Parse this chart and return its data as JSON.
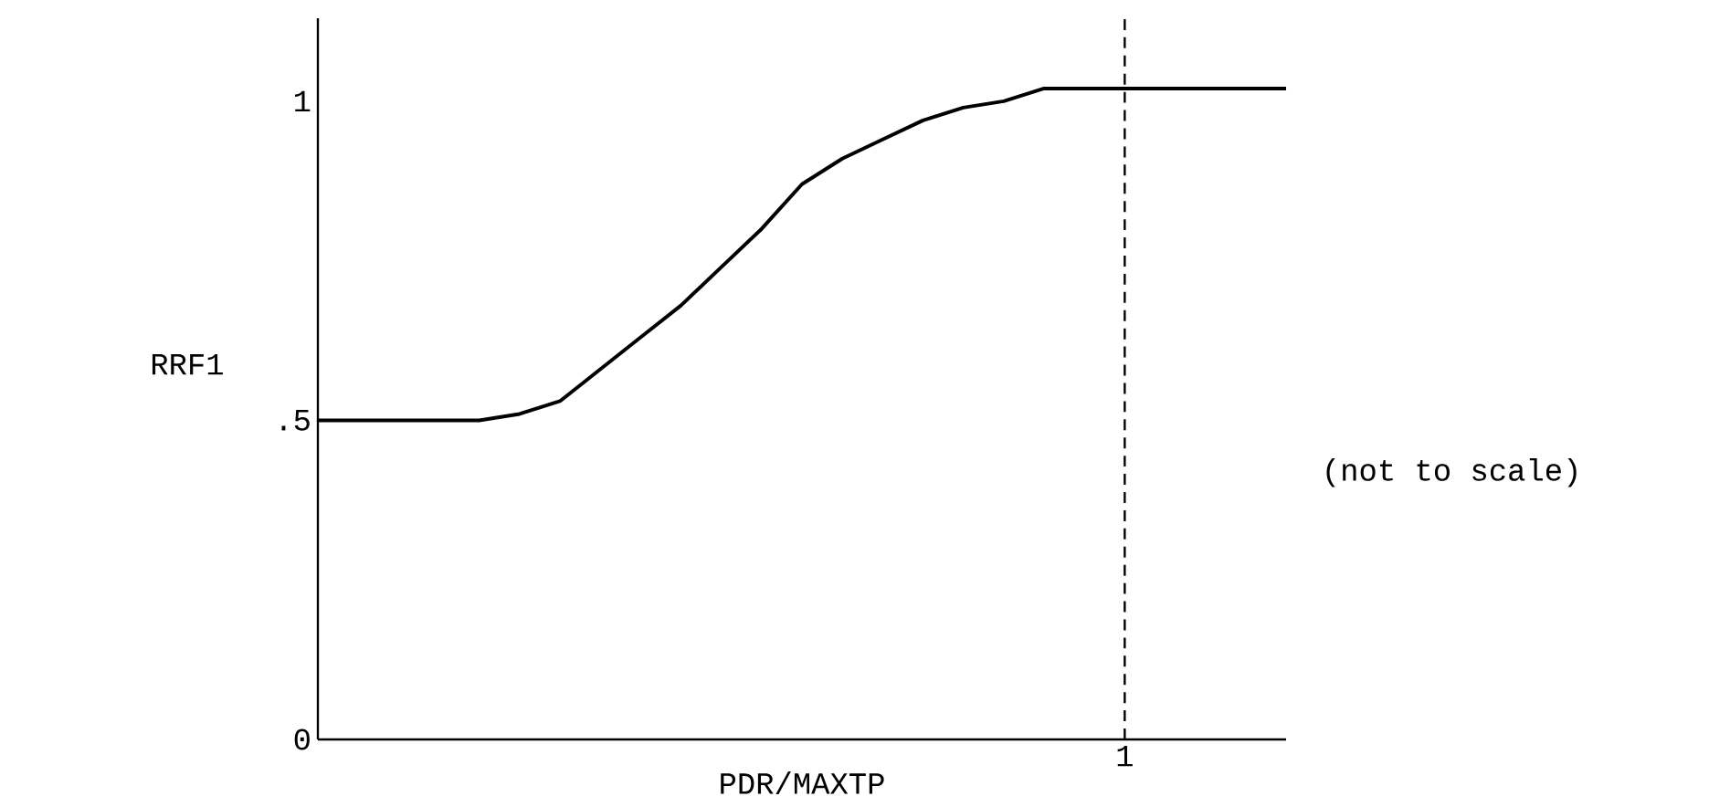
{
  "chart_data": {
    "type": "line",
    "xlabel": "PDR/MAXTP",
    "ylabel": "RRF1",
    "categories": [
      null,
      null,
      null,
      null,
      null,
      null,
      null,
      null,
      null,
      null,
      null,
      null,
      null,
      null,
      null,
      null,
      null,
      null,
      null,
      null,
      "1",
      null,
      null,
      null,
      null
    ],
    "values": [
      0.5,
      0.5,
      0.5,
      0.5,
      0.5,
      0.51,
      0.53,
      0.58,
      0.63,
      0.68,
      0.74,
      0.8,
      0.87,
      0.91,
      0.94,
      0.97,
      0.99,
      1.0,
      1.02,
      1.02,
      1.02,
      1.02,
      1.02,
      1.02,
      1.02
    ],
    "color": "#000000",
    "line_style": "solid",
    "ylim": [
      0,
      1.13
    ],
    "yticks": [
      {
        "value": 0,
        "label": "0"
      },
      {
        "value": 0.5,
        "label": ".5"
      },
      {
        "value": 1,
        "label": "1"
      }
    ],
    "ref_lines": [
      {
        "axis": "x",
        "value": "1",
        "line_style": "dashed",
        "color": "#000000"
      }
    ],
    "annotations": [
      "(not to scale)"
    ]
  }
}
